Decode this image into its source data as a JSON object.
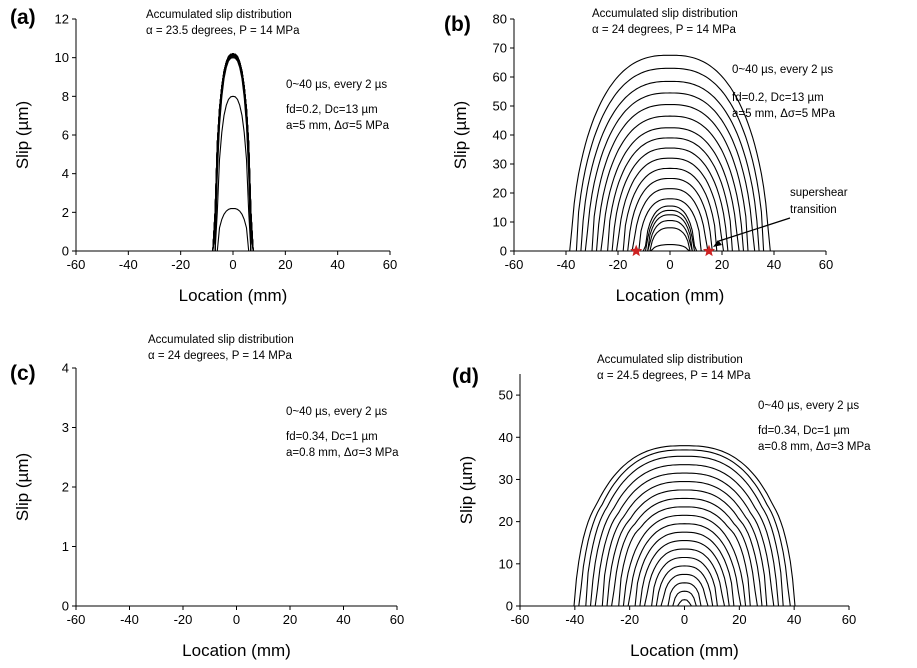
{
  "chart_data": [
    {
      "type": "line",
      "panel": "(a)",
      "xlabel": "Location (mm)",
      "ylabel": "Slip (µm)",
      "xlim": [
        -60,
        60
      ],
      "ylim": [
        0,
        12
      ],
      "xticks": [
        -60,
        -40,
        -20,
        0,
        20,
        40,
        60
      ],
      "yticks": [
        0,
        2,
        4,
        6,
        8,
        10,
        12
      ],
      "annotations": [
        "Accumulated slip distribution",
        "α = 23.5 degrees, P = 14 MPa",
        "0~40 µs, every 2 µs",
        "fd=0.2, Dc=13 µm",
        "a=5 mm, Δσ=5 MPa"
      ],
      "curves": {
        "count": 20,
        "peaks": [
          2.2,
          8.0,
          10.0,
          10.05,
          10.1,
          10.12,
          10.14,
          10.16,
          10.17,
          10.18,
          10.19,
          10.2,
          10.2,
          10.2,
          10.2,
          10.2,
          10.2,
          10.2,
          10.2,
          10.2
        ],
        "half_widths": [
          6,
          6.2,
          6.5,
          6.6,
          6.7,
          6.8,
          6.8,
          6.9,
          6.9,
          6.9,
          7,
          7,
          7,
          7,
          7,
          7,
          7,
          7,
          7,
          7
        ]
      }
    },
    {
      "type": "line",
      "panel": "(b)",
      "xlabel": "Location (mm)",
      "ylabel": "Slip (µm)",
      "xlim": [
        -60,
        60
      ],
      "ylim": [
        0,
        80
      ],
      "xticks": [
        -60,
        -40,
        -20,
        0,
        20,
        40,
        60
      ],
      "yticks": [
        0,
        10,
        20,
        30,
        40,
        50,
        60,
        70,
        80
      ],
      "annotations": [
        "Accumulated slip distribution",
        "α = 24 degrees, P = 14 MPa",
        "0~40 µs, every 2 µs",
        "fd=0.2, Dc=13 µm",
        "a=5 mm, Δσ=5 MPa",
        "supershear",
        "transition"
      ],
      "markers": [
        {
          "x": -13,
          "y": 0,
          "color": "#cc2222"
        },
        {
          "x": 15,
          "y": 0,
          "color": "#cc2222"
        }
      ],
      "curves": {
        "count": 20,
        "peaks": [
          2.2,
          8.0,
          10.5,
          12.5,
          14.0,
          15.5,
          18.0,
          21.5,
          25.0,
          28.5,
          32.0,
          35.5,
          39.0,
          42.5,
          46.5,
          50.5,
          54.5,
          58.5,
          63.0,
          67.5
        ],
        "half_widths": [
          7,
          7.5,
          8,
          8.5,
          9,
          9.5,
          12,
          14,
          16,
          18,
          20,
          22,
          24,
          26,
          28,
          30,
          32,
          34,
          36,
          38
        ]
      }
    },
    {
      "type": "line",
      "panel": "(c)",
      "xlabel": "Location (mm)",
      "ylabel": "Slip (µm)",
      "xlim": [
        -60,
        60
      ],
      "ylim": [
        0,
        4
      ],
      "xticks": [
        -60,
        -40,
        -20,
        0,
        20,
        40,
        60
      ],
      "yticks": [
        0,
        1,
        2,
        3,
        4
      ],
      "annotations": [
        "Accumulated slip distribution",
        "α = 24 degrees, P = 14 MPa",
        "0~40 µs, every 2 µs",
        "fd=0.34, Dc=1 µm",
        "a=0.8 mm, Δσ=3 MPa"
      ],
      "curves": {
        "count": 0,
        "peaks": [],
        "half_widths": []
      }
    },
    {
      "type": "line",
      "panel": "(d)",
      "xlabel": "Location (mm)",
      "ylabel": "Slip (µm)",
      "xlim": [
        -60,
        60
      ],
      "ylim": [
        0,
        55
      ],
      "xticks": [
        -60,
        -40,
        -20,
        0,
        20,
        40,
        60
      ],
      "yticks": [
        0,
        10,
        20,
        30,
        40,
        50
      ],
      "annotations": [
        "Accumulated slip distribution",
        "α = 24.5 degrees, P = 14 MPa",
        "0~40 µs, every 2 µs",
        "fd=0.34, Dc=1 µm",
        "a=0.8 mm, Δσ=3 MPa"
      ],
      "curves": {
        "count": 20,
        "peaks": [
          1.5,
          3.5,
          5.5,
          7.5,
          9.5,
          11.5,
          13.5,
          15.5,
          17.5,
          19.5,
          21.5,
          23.5,
          25.5,
          27.5,
          29.5,
          31.5,
          33.5,
          35.5,
          37.0,
          38.0
        ],
        "half_widths": [
          2,
          4,
          6,
          8,
          10,
          12,
          14,
          16,
          18,
          20,
          22,
          24,
          26,
          28,
          30,
          32,
          34,
          36,
          38,
          40
        ]
      }
    }
  ]
}
